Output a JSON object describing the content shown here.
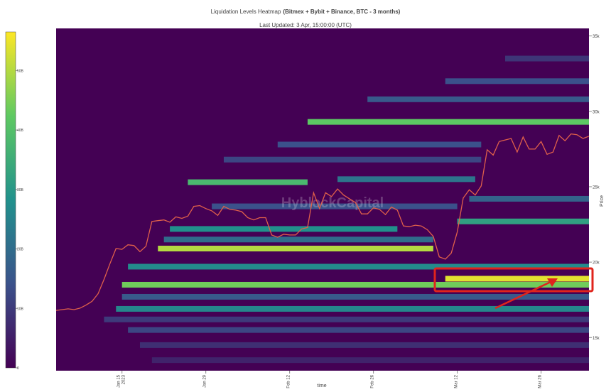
{
  "chart_data": {
    "type": "heatmap",
    "title": "Liquidation Levels Heatmap",
    "title_bold": "(Bitmex + Bybit + Binance, BTC - 3 months)",
    "subtitle": "Last Updated: 3 Apr, 15:00:00 (UTC)",
    "watermark": "HyblockCapital",
    "x_label": "time",
    "y_label": "Price",
    "xlim": [
      "2023-01-04",
      "2023-04-03"
    ],
    "xticks": [
      {
        "value": "2023-01-15",
        "label": "Jan 15\n2023"
      },
      {
        "value": "2023-01-29",
        "label": "Jan 29"
      },
      {
        "value": "2023-02-12",
        "label": "Feb 12"
      },
      {
        "value": "2023-02-26",
        "label": "Feb 26"
      },
      {
        "value": "2023-03-12",
        "label": "Mar 12"
      },
      {
        "value": "2023-03-26",
        "label": "Mar 26"
      }
    ],
    "ylim": [
      12800,
      35500
    ],
    "yticks": [
      {
        "value": 15000,
        "label": "15k"
      },
      {
        "value": 20000,
        "label": "20k"
      },
      {
        "value": 25000,
        "label": "25k"
      },
      {
        "value": 30000,
        "label": "30k"
      },
      {
        "value": 35000,
        "label": "35k"
      }
    ],
    "zlim": [
      0,
      56.5
    ],
    "zticks": [
      0,
      {
        "value": 10,
        "label": "10B"
      },
      {
        "value": 20,
        "label": "20B"
      },
      {
        "value": 30,
        "label": "30B"
      },
      {
        "value": 40,
        "label": "40B"
      },
      {
        "value": 50,
        "label": "50B"
      }
    ],
    "colorscale": [
      "#440154",
      "#3b528b",
      "#21918c",
      "#5ec962",
      "#fde725"
    ],
    "levels": {
      "price": [
        13500,
        14500,
        15500,
        16200,
        16900,
        17700,
        18500,
        18900,
        19700,
        20900,
        21500,
        22200,
        22700,
        23700,
        24200,
        25300,
        25500,
        26800,
        27800,
        29300,
        30800,
        32000,
        33500
      ],
      "start": [
        "2023-01-20",
        "2023-01-18",
        "2023-01-16",
        "2023-01-12",
        "2023-01-14",
        "2023-01-15",
        "2023-01-15",
        "2023-03-10",
        "2023-01-16",
        "2023-01-21",
        "2023-01-22",
        "2023-01-23",
        "2023-03-12",
        "2023-01-30",
        "2023-03-14",
        "2023-01-26",
        "2023-02-20",
        "2023-02-01",
        "2023-02-10",
        "2023-02-15",
        "2023-02-25",
        "2023-03-10",
        "2023-03-20"
      ],
      "end": [
        "2023-04-03",
        "2023-04-03",
        "2023-04-03",
        "2023-04-03",
        "2023-04-03",
        "2023-04-03",
        "2023-04-03",
        "2023-04-03",
        "2023-04-03",
        "2023-03-08",
        "2023-03-08",
        "2023-03-02",
        "2023-04-03",
        "2023-03-12",
        "2023-04-03",
        "2023-02-15",
        "2023-03-15",
        "2023-03-16",
        "2023-03-16",
        "2023-04-03",
        "2023-04-03",
        "2023-04-03",
        "2023-04-03"
      ],
      "values": [
        6,
        8,
        12,
        10,
        26,
        16,
        44,
        54,
        27,
        50,
        20,
        28,
        32,
        14,
        18,
        38,
        22,
        12,
        14,
        42,
        16,
        14,
        9
      ]
    },
    "price_line": {
      "color": "#e0604a",
      "x": [
        "2023-01-04",
        "2023-01-05",
        "2023-01-06",
        "2023-01-07",
        "2023-01-08",
        "2023-01-09",
        "2023-01-10",
        "2023-01-11",
        "2023-01-12",
        "2023-01-13",
        "2023-01-14",
        "2023-01-15",
        "2023-01-16",
        "2023-01-17",
        "2023-01-18",
        "2023-01-19",
        "2023-01-20",
        "2023-01-21",
        "2023-01-22",
        "2023-01-23",
        "2023-01-24",
        "2023-01-25",
        "2023-01-26",
        "2023-01-27",
        "2023-01-28",
        "2023-01-29",
        "2023-01-30",
        "2023-01-31",
        "2023-02-01",
        "2023-02-02",
        "2023-02-03",
        "2023-02-04",
        "2023-02-05",
        "2023-02-06",
        "2023-02-07",
        "2023-02-08",
        "2023-02-09",
        "2023-02-10",
        "2023-02-11",
        "2023-02-12",
        "2023-02-13",
        "2023-02-14",
        "2023-02-15",
        "2023-02-16",
        "2023-02-17",
        "2023-02-18",
        "2023-02-19",
        "2023-02-20",
        "2023-02-21",
        "2023-02-22",
        "2023-02-23",
        "2023-02-24",
        "2023-02-25",
        "2023-02-26",
        "2023-02-27",
        "2023-02-28",
        "2023-03-01",
        "2023-03-02",
        "2023-03-03",
        "2023-03-04",
        "2023-03-05",
        "2023-03-06",
        "2023-03-07",
        "2023-03-08",
        "2023-03-09",
        "2023-03-10",
        "2023-03-11",
        "2023-03-12",
        "2023-03-13",
        "2023-03-14",
        "2023-03-15",
        "2023-03-16",
        "2023-03-17",
        "2023-03-18",
        "2023-03-19",
        "2023-03-20",
        "2023-03-21",
        "2023-03-22",
        "2023-03-23",
        "2023-03-24",
        "2023-03-25",
        "2023-03-26",
        "2023-03-27",
        "2023-03-28",
        "2023-03-29",
        "2023-03-30",
        "2023-03-31",
        "2023-04-01",
        "2023-04-02",
        "2023-04-03"
      ],
      "values": [
        16800,
        16850,
        16900,
        16850,
        16950,
        17150,
        17400,
        17900,
        18850,
        19900,
        20900,
        20850,
        21150,
        21100,
        20700,
        21050,
        22700,
        22750,
        22800,
        22650,
        23000,
        22900,
        23050,
        23700,
        23750,
        23550,
        23400,
        23100,
        23700,
        23500,
        23450,
        23350,
        22950,
        22800,
        22950,
        22950,
        21800,
        21650,
        21850,
        21800,
        21800,
        22200,
        22300,
        24600,
        23550,
        24600,
        24350,
        24850,
        24450,
        24200,
        23950,
        23200,
        23200,
        23600,
        23500,
        23150,
        23650,
        23450,
        22400,
        22350,
        22450,
        22400,
        22150,
        21700,
        20350,
        20200,
        20600,
        22000,
        24250,
        24800,
        24450,
        25050,
        27450,
        27100,
        28000,
        28100,
        28200,
        27300,
        28300,
        27500,
        27500,
        28000,
        27150,
        27300,
        28400,
        28050,
        28500,
        28450,
        28200,
        28350
      ]
    }
  }
}
